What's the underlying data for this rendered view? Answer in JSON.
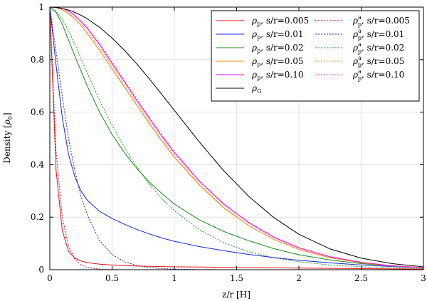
{
  "chart_data": {
    "type": "line",
    "title": "",
    "xlabel": "z/r [H]",
    "ylabel_main": "Density [",
    "ylabel_sym": "ρ",
    "ylabel_sub": "0",
    "ylabel_end": "]",
    "xlim": [
      0,
      3
    ],
    "ylim": [
      0,
      1
    ],
    "xticks": [
      0,
      0.5,
      1,
      1.5,
      2,
      2.5,
      3
    ],
    "xtick_labels": [
      "0",
      "0.5",
      "1",
      "1.5",
      "2",
      "2.5",
      "3"
    ],
    "yticks": [
      0,
      0.2,
      0.4,
      0.6,
      0.8,
      1
    ],
    "ytick_labels": [
      "0",
      "0.2",
      "0.4",
      "0.6",
      "0.8",
      "1"
    ],
    "grid": true,
    "legend_position": "top-right",
    "x": [
      0,
      0.05,
      0.1,
      0.15,
      0.2,
      0.25,
      0.3,
      0.4,
      0.5,
      0.6,
      0.7,
      0.8,
      0.9,
      1.0,
      1.2,
      1.4,
      1.6,
      1.8,
      2.0,
      2.25,
      2.5,
      2.75,
      3.0
    ],
    "series": [
      {
        "name": "ρp, s/r=0.005",
        "sym": "ρ",
        "sub": "p",
        "sup": "",
        "param": ", s/r=0.005",
        "color": "#e8101a",
        "dash": "solid",
        "values": [
          1,
          0.38,
          0.15,
          0.07,
          0.045,
          0.033,
          0.027,
          0.021,
          0.018,
          0.016,
          0.014,
          0.013,
          0.012,
          0.011,
          0.01,
          0.009,
          0.008,
          0.007,
          0.006,
          0.005,
          0.004,
          0.003,
          0.002
        ]
      },
      {
        "name": "ρp, s/r=0.01",
        "sym": "ρ",
        "sub": "p",
        "sup": "",
        "param": ", s/r=0.01",
        "color": "#1428d8",
        "dash": "solid",
        "values": [
          1,
          0.78,
          0.58,
          0.44,
          0.355,
          0.3,
          0.265,
          0.222,
          0.195,
          0.173,
          0.153,
          0.136,
          0.121,
          0.108,
          0.088,
          0.072,
          0.058,
          0.046,
          0.036,
          0.026,
          0.018,
          0.012,
          0.007
        ]
      },
      {
        "name": "ρp, s/r=0.02",
        "sym": "ρ",
        "sub": "p",
        "sup": "",
        "param": ", s/r=0.02",
        "color": "#1c8a1c",
        "dash": "solid",
        "values": [
          1,
          0.98,
          0.935,
          0.875,
          0.815,
          0.758,
          0.7,
          0.6,
          0.515,
          0.445,
          0.385,
          0.333,
          0.29,
          0.25,
          0.19,
          0.145,
          0.11,
          0.08,
          0.057,
          0.037,
          0.023,
          0.014,
          0.008
        ]
      },
      {
        "name": "ρp, s/r=0.05",
        "sym": "ρ",
        "sub": "p",
        "sup": "",
        "param": ", s/r=0.05",
        "color": "#f08a1a",
        "dash": "solid",
        "values": [
          1,
          0.998,
          0.99,
          0.975,
          0.955,
          0.93,
          0.9,
          0.835,
          0.765,
          0.695,
          0.625,
          0.555,
          0.49,
          0.428,
          0.322,
          0.234,
          0.167,
          0.115,
          0.077,
          0.045,
          0.026,
          0.014,
          0.007
        ]
      },
      {
        "name": "ρp, s/r=0.10",
        "sym": "ρ",
        "sub": "p",
        "sup": "",
        "param": ", s/r=0.10",
        "color": "#ee12ee",
        "dash": "solid",
        "values": [
          1,
          0.999,
          0.995,
          0.985,
          0.968,
          0.945,
          0.92,
          0.857,
          0.785,
          0.715,
          0.643,
          0.575,
          0.508,
          0.445,
          0.337,
          0.248,
          0.178,
          0.123,
          0.083,
          0.049,
          0.028,
          0.015,
          0.008
        ]
      },
      {
        "name": "ρG",
        "sym": "ρ",
        "sub": "G",
        "sup": "",
        "param": "",
        "color": "#000000",
        "dash": "solid",
        "values": [
          1,
          0.999,
          0.995,
          0.989,
          0.98,
          0.969,
          0.956,
          0.923,
          0.882,
          0.835,
          0.783,
          0.726,
          0.667,
          0.607,
          0.487,
          0.375,
          0.278,
          0.198,
          0.135,
          0.079,
          0.044,
          0.023,
          0.011
        ]
      },
      {
        "name": "ρpa, s/r=0.005",
        "sym": "ρ",
        "sub": "p",
        "sup": "a",
        "param": ", s/r=0.005",
        "color": "#b01028",
        "dash": "dotted",
        "values": [
          1,
          0.45,
          0.2,
          0.09,
          0.04,
          0.018,
          0.008,
          0.002,
          0.0005,
          0,
          0,
          0,
          0,
          0,
          0,
          0,
          0,
          0,
          0,
          0,
          0,
          0,
          0
        ]
      },
      {
        "name": "ρpa, s/r=0.01",
        "sym": "ρ",
        "sub": "p",
        "sup": "a",
        "param": ", s/r=0.01",
        "color": "#2020b8",
        "dash": "dotted",
        "values": [
          1,
          0.83,
          0.66,
          0.5,
          0.38,
          0.28,
          0.21,
          0.11,
          0.058,
          0.03,
          0.016,
          0.008,
          0.004,
          0.002,
          0.0005,
          0,
          0,
          0,
          0,
          0,
          0,
          0,
          0
        ]
      },
      {
        "name": "ρpa, s/r=0.02",
        "sym": "ρ",
        "sub": "p",
        "sup": "a",
        "param": ", s/r=0.02",
        "color": "#1c9a1c",
        "dash": "dotted",
        "values": [
          1,
          0.985,
          0.955,
          0.91,
          0.86,
          0.805,
          0.75,
          0.645,
          0.55,
          0.465,
          0.39,
          0.325,
          0.27,
          0.225,
          0.152,
          0.102,
          0.068,
          0.045,
          0.03,
          0.018,
          0.011,
          0.006,
          0.004
        ]
      },
      {
        "name": "ρpa, s/r=0.05",
        "sym": "ρ",
        "sub": "p",
        "sup": "a",
        "param": ", s/r=0.05",
        "color": "#f0a030",
        "dash": "dotted",
        "values": [
          1,
          0.998,
          0.99,
          0.978,
          0.96,
          0.937,
          0.91,
          0.845,
          0.775,
          0.703,
          0.632,
          0.562,
          0.495,
          0.433,
          0.325,
          0.237,
          0.168,
          0.116,
          0.078,
          0.046,
          0.026,
          0.014,
          0.007
        ]
      },
      {
        "name": "ρpa, s/r=0.10",
        "sym": "ρ",
        "sub": "p",
        "sup": "a",
        "param": ", s/r=0.10",
        "color": "#f040f0",
        "dash": "dotted",
        "values": [
          1,
          0.999,
          0.995,
          0.986,
          0.969,
          0.947,
          0.922,
          0.86,
          0.79,
          0.72,
          0.648,
          0.58,
          0.513,
          0.45,
          0.34,
          0.25,
          0.18,
          0.125,
          0.084,
          0.05,
          0.028,
          0.015,
          0.008
        ]
      }
    ]
  }
}
